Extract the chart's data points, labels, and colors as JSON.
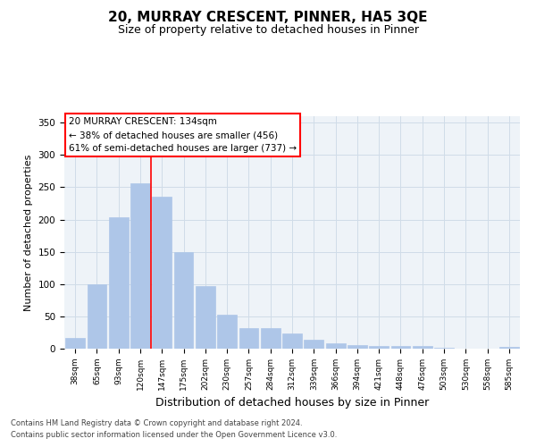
{
  "title": "20, MURRAY CRESCENT, PINNER, HA5 3QE",
  "subtitle": "Size of property relative to detached houses in Pinner",
  "xlabel": "Distribution of detached houses by size in Pinner",
  "ylabel": "Number of detached properties",
  "categories": [
    "38sqm",
    "65sqm",
    "93sqm",
    "120sqm",
    "147sqm",
    "175sqm",
    "202sqm",
    "230sqm",
    "257sqm",
    "284sqm",
    "312sqm",
    "339sqm",
    "366sqm",
    "394sqm",
    "421sqm",
    "448sqm",
    "476sqm",
    "503sqm",
    "530sqm",
    "558sqm",
    "585sqm"
  ],
  "values": [
    17,
    100,
    204,
    256,
    236,
    150,
    97,
    53,
    32,
    32,
    24,
    14,
    8,
    5,
    4,
    4,
    4,
    1,
    0,
    0,
    3
  ],
  "bar_color": "#aec6e8",
  "bar_edgecolor": "#aec6e8",
  "grid_color": "#d0dce8",
  "background_color": "#eef3f8",
  "vline_x": 3.5,
  "vline_color": "red",
  "annotation_text": "20 MURRAY CRESCENT: 134sqm\n← 38% of detached houses are smaller (456)\n61% of semi-detached houses are larger (737) →",
  "annotation_box_edgecolor": "red",
  "annotation_fontsize": 7.5,
  "ylim": [
    0,
    360
  ],
  "yticks": [
    0,
    50,
    100,
    150,
    200,
    250,
    300,
    350
  ],
  "footer1": "Contains HM Land Registry data © Crown copyright and database right 2024.",
  "footer2": "Contains public sector information licensed under the Open Government Licence v3.0.",
  "title_fontsize": 11,
  "subtitle_fontsize": 9,
  "xlabel_fontsize": 9,
  "ylabel_fontsize": 8
}
